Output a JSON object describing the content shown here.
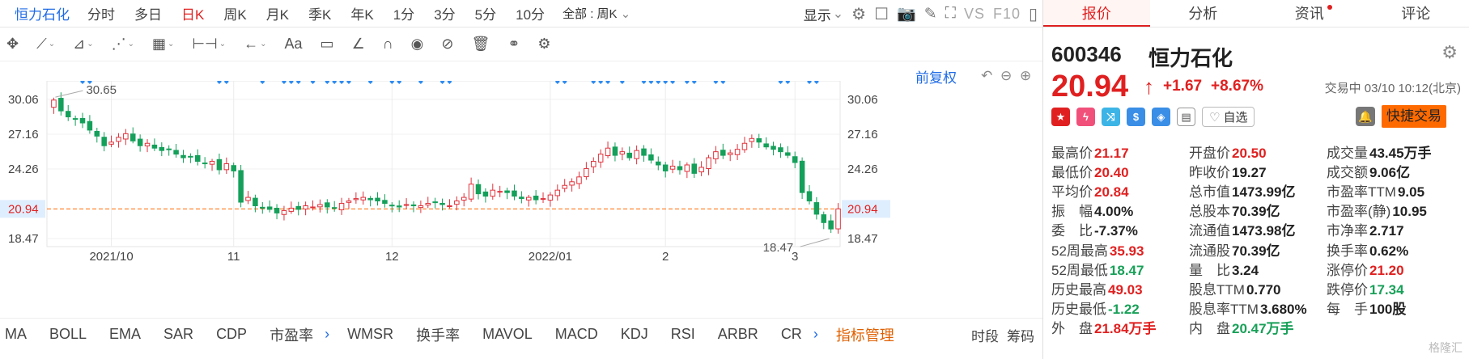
{
  "stock_tab": "恒力石化",
  "periods": [
    "分时",
    "多日",
    "日K",
    "周K",
    "月K",
    "季K",
    "年K",
    "1分",
    "3分",
    "5分",
    "10分"
  ],
  "active_period": "日K",
  "period_select": "全部 : 周K",
  "toolbar": {
    "display_label": "显示",
    "vs_label": "VS",
    "f10_label": "F10"
  },
  "chart_controls": {
    "adjust_label": "前复权"
  },
  "indicators": [
    "MA",
    "BOLL",
    "EMA",
    "SAR",
    "CDP",
    "市盈率",
    "WMSR",
    "换手率",
    "MAVOL",
    "MACD",
    "KDJ",
    "RSI",
    "ARBR",
    "CR"
  ],
  "indicator_manage": "指标管理",
  "bottom_right": {
    "time_segment": "时段",
    "chips": "筹码"
  },
  "panel": {
    "tabs": [
      "报价",
      "分析",
      "资讯",
      "评论"
    ],
    "code": "600346",
    "name": "恒力石化",
    "price": "20.94",
    "change": "+1.67",
    "change_pct": "+8.67%",
    "status": "交易中 03/10 10:12(北京)",
    "watch_label": "自选",
    "quick_trade": "快捷交易",
    "stats": [
      [
        {
          "k": "最高价",
          "v": "21.17",
          "c": "up"
        },
        {
          "k": "开盘价",
          "v": "20.50",
          "c": "up"
        },
        {
          "k": "成交量",
          "v": "43.45万手",
          "c": "nc"
        }
      ],
      [
        {
          "k": "最低价",
          "v": "20.40",
          "c": "up"
        },
        {
          "k": "昨收价",
          "v": "19.27",
          "c": "nc"
        },
        {
          "k": "成交额",
          "v": "9.06亿",
          "c": "nc"
        }
      ],
      [
        {
          "k": "平均价",
          "v": "20.84",
          "c": "up"
        },
        {
          "k": "总市值",
          "v": "1473.99亿",
          "c": "nc"
        },
        {
          "k": "市盈率TTM",
          "v": "9.05",
          "c": "nc"
        }
      ],
      [
        {
          "k": "振　幅",
          "v": "4.00%",
          "c": "nc"
        },
        {
          "k": "总股本",
          "v": "70.39亿",
          "c": "nc"
        },
        {
          "k": "市盈率(静)",
          "v": "10.95",
          "c": "nc"
        }
      ],
      [
        {
          "k": "委　比",
          "v": "-7.37%",
          "c": "nc"
        },
        {
          "k": "流通值",
          "v": "1473.98亿",
          "c": "nc"
        },
        {
          "k": "市净率",
          "v": "2.717",
          "c": "nc"
        }
      ],
      [
        {
          "k": "52周最高",
          "v": "35.93",
          "c": "up"
        },
        {
          "k": "流通股",
          "v": "70.39亿",
          "c": "nc"
        },
        {
          "k": "换手率",
          "v": "0.62%",
          "c": "nc"
        }
      ],
      [
        {
          "k": "52周最低",
          "v": "18.47",
          "c": "dn"
        },
        {
          "k": "量　比",
          "v": "3.24",
          "c": "nc"
        },
        {
          "k": "涨停价",
          "v": "21.20",
          "c": "up"
        }
      ],
      [
        {
          "k": "历史最高",
          "v": "49.03",
          "c": "up"
        },
        {
          "k": "股息TTM",
          "v": "0.770",
          "c": "nc"
        },
        {
          "k": "跌停价",
          "v": "17.34",
          "c": "dn"
        }
      ],
      [
        {
          "k": "历史最低",
          "v": "-1.22",
          "c": "dn"
        },
        {
          "k": "股息率TTM",
          "v": "3.680%",
          "c": "nc"
        },
        {
          "k": "每　手",
          "v": "100股",
          "c": "nc"
        }
      ],
      [
        {
          "k": "外　盘",
          "v": "21.84万手",
          "c": "up"
        },
        {
          "k": "内　盘",
          "v": "20.47万手",
          "c": "dn"
        },
        {
          "k": "",
          "v": "",
          "c": "nc"
        }
      ]
    ],
    "watermark": "格隆汇"
  },
  "chart_data": {
    "type": "candlestick",
    "yticks": [
      "30.06",
      "27.16",
      "24.26",
      "20.94",
      "18.47"
    ],
    "current_price": 20.94,
    "high_label": "30.65",
    "low_label": "18.47",
    "xticks": [
      {
        "label": "2021/10",
        "idx": 8
      },
      {
        "label": "11",
        "idx": 25
      },
      {
        "label": "12",
        "idx": 47
      },
      {
        "label": "2022/01",
        "idx": 69
      },
      {
        "label": "2",
        "idx": 85
      },
      {
        "label": "3",
        "idx": 103
      }
    ],
    "diamonds": [
      4,
      5,
      23,
      24,
      29,
      32,
      33,
      34,
      36,
      38,
      39,
      40,
      41,
      44,
      47,
      48,
      51,
      54,
      55,
      70,
      71,
      75,
      76,
      77,
      79,
      82,
      83,
      84,
      85,
      86,
      88,
      89,
      92,
      93,
      101,
      102,
      105,
      106
    ],
    "colors": {
      "up": "#e0323c",
      "down": "#14a05a",
      "accent": "#ff6a00"
    },
    "closes": [
      30.0,
      29.1,
      28.6,
      28.4,
      28.1,
      27.5,
      27.0,
      26.2,
      26.5,
      26.9,
      27.2,
      26.6,
      26.2,
      26.4,
      26.0,
      25.8,
      25.9,
      25.5,
      25.2,
      25.3,
      24.9,
      24.7,
      24.9,
      24.2,
      24.7,
      24.1,
      21.5,
      21.9,
      21.2,
      21.0,
      20.9,
      20.6,
      20.8,
      21.0,
      20.9,
      21.2,
      21.1,
      21.3,
      21.1,
      21.0,
      21.4,
      21.6,
      21.8,
      21.9,
      21.7,
      21.6,
      21.4,
      21.2,
      21.1,
      21.3,
      21.2,
      21.2,
      21.4,
      21.5,
      21.3,
      21.2,
      21.6,
      21.9,
      23.0,
      22.2,
      22.0,
      22.5,
      22.4,
      22.3,
      22.0,
      21.8,
      21.9,
      21.7,
      21.8,
      22.1,
      22.5,
      22.9,
      23.2,
      23.6,
      24.3,
      24.9,
      25.5,
      26.0,
      25.4,
      25.7,
      25.2,
      25.8,
      25.4,
      25.0,
      24.6,
      24.1,
      24.5,
      24.2,
      24.6,
      23.9,
      24.4,
      25.2,
      25.7,
      25.4,
      25.6,
      25.9,
      26.4,
      26.8,
      26.5,
      26.1,
      25.9,
      25.7,
      25.4,
      24.8,
      22.3,
      21.6,
      20.5,
      19.8,
      19.27,
      20.94
    ]
  }
}
